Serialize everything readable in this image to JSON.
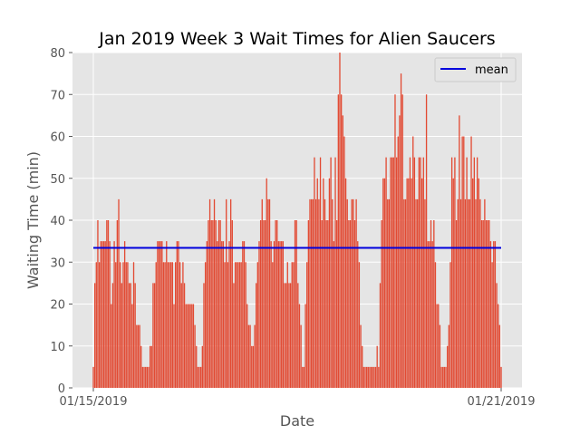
{
  "chart_data": {
    "type": "bar",
    "title": "Jan 2019 Week 3 Wait Times for Alien Saucers",
    "xlabel": "Date",
    "ylabel": "Waiting Time (min)",
    "ylim": [
      0,
      80
    ],
    "yticks": [
      0,
      10,
      20,
      30,
      40,
      50,
      60,
      70,
      80
    ],
    "xtick_labels": [
      "01/15/2019",
      "01/21/2019"
    ],
    "x_range_dates": [
      "01/15/2019",
      "01/21/2019"
    ],
    "grid": true,
    "legend_position": "top-right",
    "bar_color": "#e24a33",
    "mean_line": {
      "name": "mean",
      "value": 33.4,
      "color": "#0000dd"
    },
    "values": [
      5,
      25,
      30,
      40,
      30,
      35,
      35,
      35,
      35,
      40,
      40,
      35,
      20,
      25,
      35,
      30,
      40,
      45,
      30,
      25,
      30,
      35,
      30,
      30,
      25,
      25,
      20,
      30,
      25,
      15,
      15,
      15,
      10,
      5,
      5,
      5,
      5,
      5,
      10,
      10,
      25,
      25,
      30,
      35,
      35,
      35,
      35,
      30,
      30,
      35,
      30,
      30,
      30,
      30,
      20,
      30,
      35,
      35,
      30,
      25,
      30,
      25,
      20,
      20,
      20,
      20,
      20,
      20,
      15,
      10,
      5,
      5,
      5,
      10,
      25,
      30,
      35,
      40,
      45,
      40,
      40,
      45,
      40,
      35,
      40,
      40,
      35,
      35,
      30,
      45,
      30,
      35,
      45,
      40,
      25,
      30,
      30,
      30,
      30,
      30,
      35,
      35,
      30,
      20,
      15,
      15,
      10,
      10,
      15,
      25,
      30,
      35,
      40,
      45,
      40,
      40,
      50,
      45,
      45,
      35,
      30,
      35,
      40,
      40,
      35,
      35,
      35,
      35,
      25,
      25,
      30,
      25,
      25,
      30,
      30,
      40,
      40,
      25,
      20,
      15,
      5,
      5,
      20,
      30,
      40,
      45,
      45,
      45,
      55,
      45,
      50,
      45,
      55,
      40,
      50,
      45,
      40,
      40,
      50,
      55,
      45,
      35,
      55,
      40,
      70,
      80,
      70,
      65,
      60,
      50,
      45,
      40,
      40,
      45,
      45,
      40,
      45,
      35,
      30,
      15,
      10,
      5,
      5,
      5,
      5,
      5,
      5,
      5,
      5,
      5,
      10,
      5,
      25,
      40,
      50,
      50,
      55,
      45,
      45,
      55,
      55,
      55,
      70,
      55,
      60,
      65,
      75,
      70,
      45,
      45,
      50,
      50,
      55,
      50,
      60,
      55,
      45,
      45,
      55,
      55,
      50,
      55,
      45,
      70,
      35,
      35,
      40,
      35,
      40,
      30,
      20,
      20,
      15,
      5,
      5,
      5,
      5,
      10,
      15,
      30,
      55,
      50,
      55,
      40,
      45,
      65,
      45,
      60,
      60,
      45,
      55,
      45,
      45,
      60,
      50,
      55,
      45,
      55,
      50,
      45,
      40,
      40,
      45,
      40,
      40,
      40,
      35,
      30,
      35,
      35,
      25,
      20,
      15,
      5
    ]
  }
}
